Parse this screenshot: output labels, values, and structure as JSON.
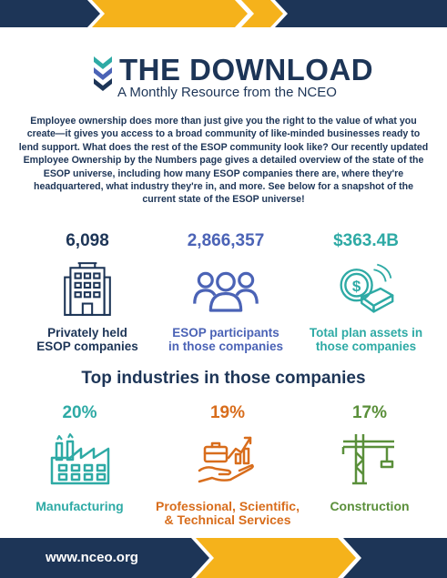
{
  "header": {
    "title": "THE DOWNLOAD",
    "subtitle": "A Monthly Resource from the NCEO"
  },
  "intro": "Employee ownership does more than just give you the right to the value of what you create—it gives you access to a broad community of like-minded businesses ready to lend support. What does the rest of the ESOP community look like? Our recently updated Employee Ownership by the Numbers page gives a detailed overview of the state of the ESOP universe, including how many ESOP companies there are, where they're headquartered, what industry they're in, and more. See below for a snapshot of the current state of the ESOP universe!",
  "stats": [
    {
      "value": "6,098",
      "label_line1": "Privately held",
      "label_line2": "ESOP companies",
      "icon": "office-building-icon"
    },
    {
      "value": "2,866,357",
      "label_line1": "ESOP participants",
      "label_line2": "in those companies",
      "icon": "people-group-icon"
    },
    {
      "value": "$363.4B",
      "label_line1": "Total plan assets in",
      "label_line2": "those companies",
      "icon": "coin-gold-bar-icon"
    }
  ],
  "industries": {
    "title": "Top industries in those companies",
    "items": [
      {
        "percent": "20%",
        "label_line1": "Manufacturing",
        "label_line2": "",
        "icon": "factory-icon"
      },
      {
        "percent": "19%",
        "label_line1": "Professional, Scientific,",
        "label_line2": "& Technical Services",
        "icon": "briefcase-growth-icon"
      },
      {
        "percent": "17%",
        "label_line1": "Construction",
        "label_line2": "",
        "icon": "tower-crane-icon"
      }
    ]
  },
  "footer": {
    "url": "www.nceo.org"
  },
  "colors": {
    "navy": "#1d3557",
    "gold": "#f5b21b",
    "blue": "#4b63b6",
    "teal": "#2eaaa5",
    "orange": "#d86d1c",
    "green": "#5a8f3a"
  }
}
